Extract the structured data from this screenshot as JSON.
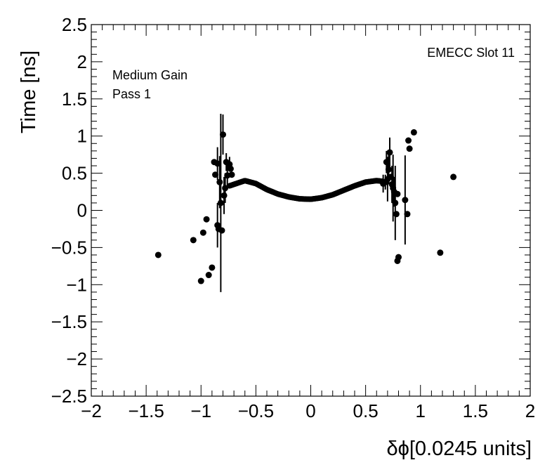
{
  "chart_data": {
    "type": "scatter",
    "title": "",
    "xlabel": "δϕ[0.0245 units]",
    "ylabel": "Time [ns]",
    "xlim": [
      -2,
      2
    ],
    "ylim": [
      -2.5,
      2.5
    ],
    "x_major_ticks": [
      -2,
      -1.5,
      -1,
      -0.5,
      0,
      0.5,
      1,
      1.5,
      2
    ],
    "x_tick_labels": [
      "−2",
      "−1.5",
      "−1",
      "−0.5",
      "0",
      "0.5",
      "1",
      "1.5",
      "2"
    ],
    "y_major_ticks": [
      -2.5,
      -2,
      -1.5,
      -1,
      -0.5,
      0,
      0.5,
      1,
      1.5,
      2,
      2.5
    ],
    "y_tick_labels": [
      "−2.5",
      "−2",
      "−1.5",
      "−1",
      "−0.5",
      "0",
      "0.5",
      "1",
      "1.5",
      "2",
      "2.5"
    ],
    "grid": false,
    "legend": "none",
    "annotations": [
      "Medium Gain",
      "Pass 1",
      "EMECC Slot 11"
    ],
    "marker_color": "#000000",
    "dense_band": {
      "description_points": [
        [
          -0.74,
          0.33
        ],
        [
          -0.6,
          0.4
        ],
        [
          -0.5,
          0.36
        ],
        [
          -0.4,
          0.28
        ],
        [
          -0.3,
          0.22
        ],
        [
          -0.2,
          0.18
        ],
        [
          -0.1,
          0.155
        ],
        [
          0.0,
          0.15
        ],
        [
          0.1,
          0.17
        ],
        [
          0.2,
          0.21
        ],
        [
          0.3,
          0.27
        ],
        [
          0.4,
          0.33
        ],
        [
          0.5,
          0.38
        ],
        [
          0.6,
          0.4
        ],
        [
          0.66,
          0.39
        ]
      ],
      "x_range": [
        -0.74,
        0.66
      ]
    },
    "points": [
      {
        "x": -1.39,
        "y": -0.6
      },
      {
        "x": -1.07,
        "y": -0.4
      },
      {
        "x": -1.0,
        "y": -0.95
      },
      {
        "x": -0.98,
        "y": -0.3
      },
      {
        "x": -0.95,
        "y": -0.12
      },
      {
        "x": -0.93,
        "y": -0.87
      },
      {
        "x": -0.9,
        "y": -0.77
      },
      {
        "x": -0.88,
        "y": 0.65
      },
      {
        "x": -0.87,
        "y": 0.48
      },
      {
        "x": -0.85,
        "y": 0.63,
        "err": 0.22
      },
      {
        "x": -0.85,
        "y": -0.2,
        "err": 0.3
      },
      {
        "x": -0.84,
        "y": -0.25
      },
      {
        "x": -0.83,
        "y": 0.38,
        "err": 0.35
      },
      {
        "x": -0.82,
        "y": 0.1,
        "err": 1.2
      },
      {
        "x": -0.81,
        "y": -0.27
      },
      {
        "x": -0.8,
        "y": 1.02,
        "err": 0.27
      },
      {
        "x": -0.79,
        "y": 0.2,
        "err": 0.25
      },
      {
        "x": -0.78,
        "y": 0.3,
        "err": 0.2
      },
      {
        "x": -0.77,
        "y": 0.65,
        "err": 0.12
      },
      {
        "x": -0.76,
        "y": 0.47,
        "err": 0.15
      },
      {
        "x": -0.74,
        "y": 0.62,
        "err": 0.1
      },
      {
        "x": -0.73,
        "y": 0.56
      },
      {
        "x": -0.72,
        "y": 0.48
      },
      {
        "x": 0.66,
        "y": 0.36,
        "err": 0.12
      },
      {
        "x": 0.68,
        "y": 0.38,
        "err": 0.1
      },
      {
        "x": 0.69,
        "y": 0.65,
        "err": 0.15
      },
      {
        "x": 0.7,
        "y": 0.42,
        "err": 0.3
      },
      {
        "x": 0.71,
        "y": 0.55,
        "err": 0.2
      },
      {
        "x": 0.72,
        "y": 0.78,
        "err": 0.2
      },
      {
        "x": 0.73,
        "y": 0.45
      },
      {
        "x": 0.74,
        "y": 0.35,
        "err": 0.25
      },
      {
        "x": 0.75,
        "y": 0.3,
        "err": 0.45
      },
      {
        "x": 0.76,
        "y": 0.25,
        "err": 0.2
      },
      {
        "x": 0.77,
        "y": 0.1,
        "err": 0.5
      },
      {
        "x": 0.78,
        "y": -0.05
      },
      {
        "x": 0.79,
        "y": 0.22
      },
      {
        "x": 0.79,
        "y": -0.68
      },
      {
        "x": 0.8,
        "y": -0.63
      },
      {
        "x": 0.86,
        "y": 0.14,
        "err": 0.6
      },
      {
        "x": 0.88,
        "y": -0.05
      },
      {
        "x": 0.89,
        "y": 0.94
      },
      {
        "x": 0.9,
        "y": 0.83
      },
      {
        "x": 0.94,
        "y": 1.05
      },
      {
        "x": 1.18,
        "y": -0.57
      },
      {
        "x": 1.3,
        "y": 0.45
      }
    ]
  }
}
